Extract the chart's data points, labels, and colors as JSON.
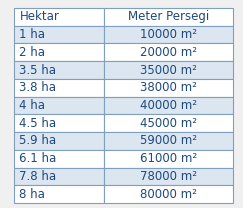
{
  "header": [
    "Hektar",
    "Meter Persegi"
  ],
  "rows": [
    [
      "1 ha",
      "10000 m²"
    ],
    [
      "2 ha",
      "20000 m²"
    ],
    [
      "3.5 ha",
      "35000 m²"
    ],
    [
      "3.8 ha",
      "38000 m²"
    ],
    [
      "4 ha",
      "40000 m²"
    ],
    [
      "4.5 ha",
      "45000 m²"
    ],
    [
      "5.9 ha",
      "59000 m²"
    ],
    [
      "6.1 ha",
      "61000 m²"
    ],
    [
      "7.8 ha",
      "78000 m²"
    ],
    [
      "8 ha",
      "80000 m²"
    ]
  ],
  "header_bg": "#ffffff",
  "row_bg_even": "#dce6f1",
  "row_bg_odd": "#ffffff",
  "border_color": "#7f9fbf",
  "text_color": "#1f497d",
  "header_fontsize": 8.5,
  "row_fontsize": 8.5,
  "fig_bg": "#f0f0f0",
  "table_bg": "#ffffff",
  "col_split": 0.41
}
